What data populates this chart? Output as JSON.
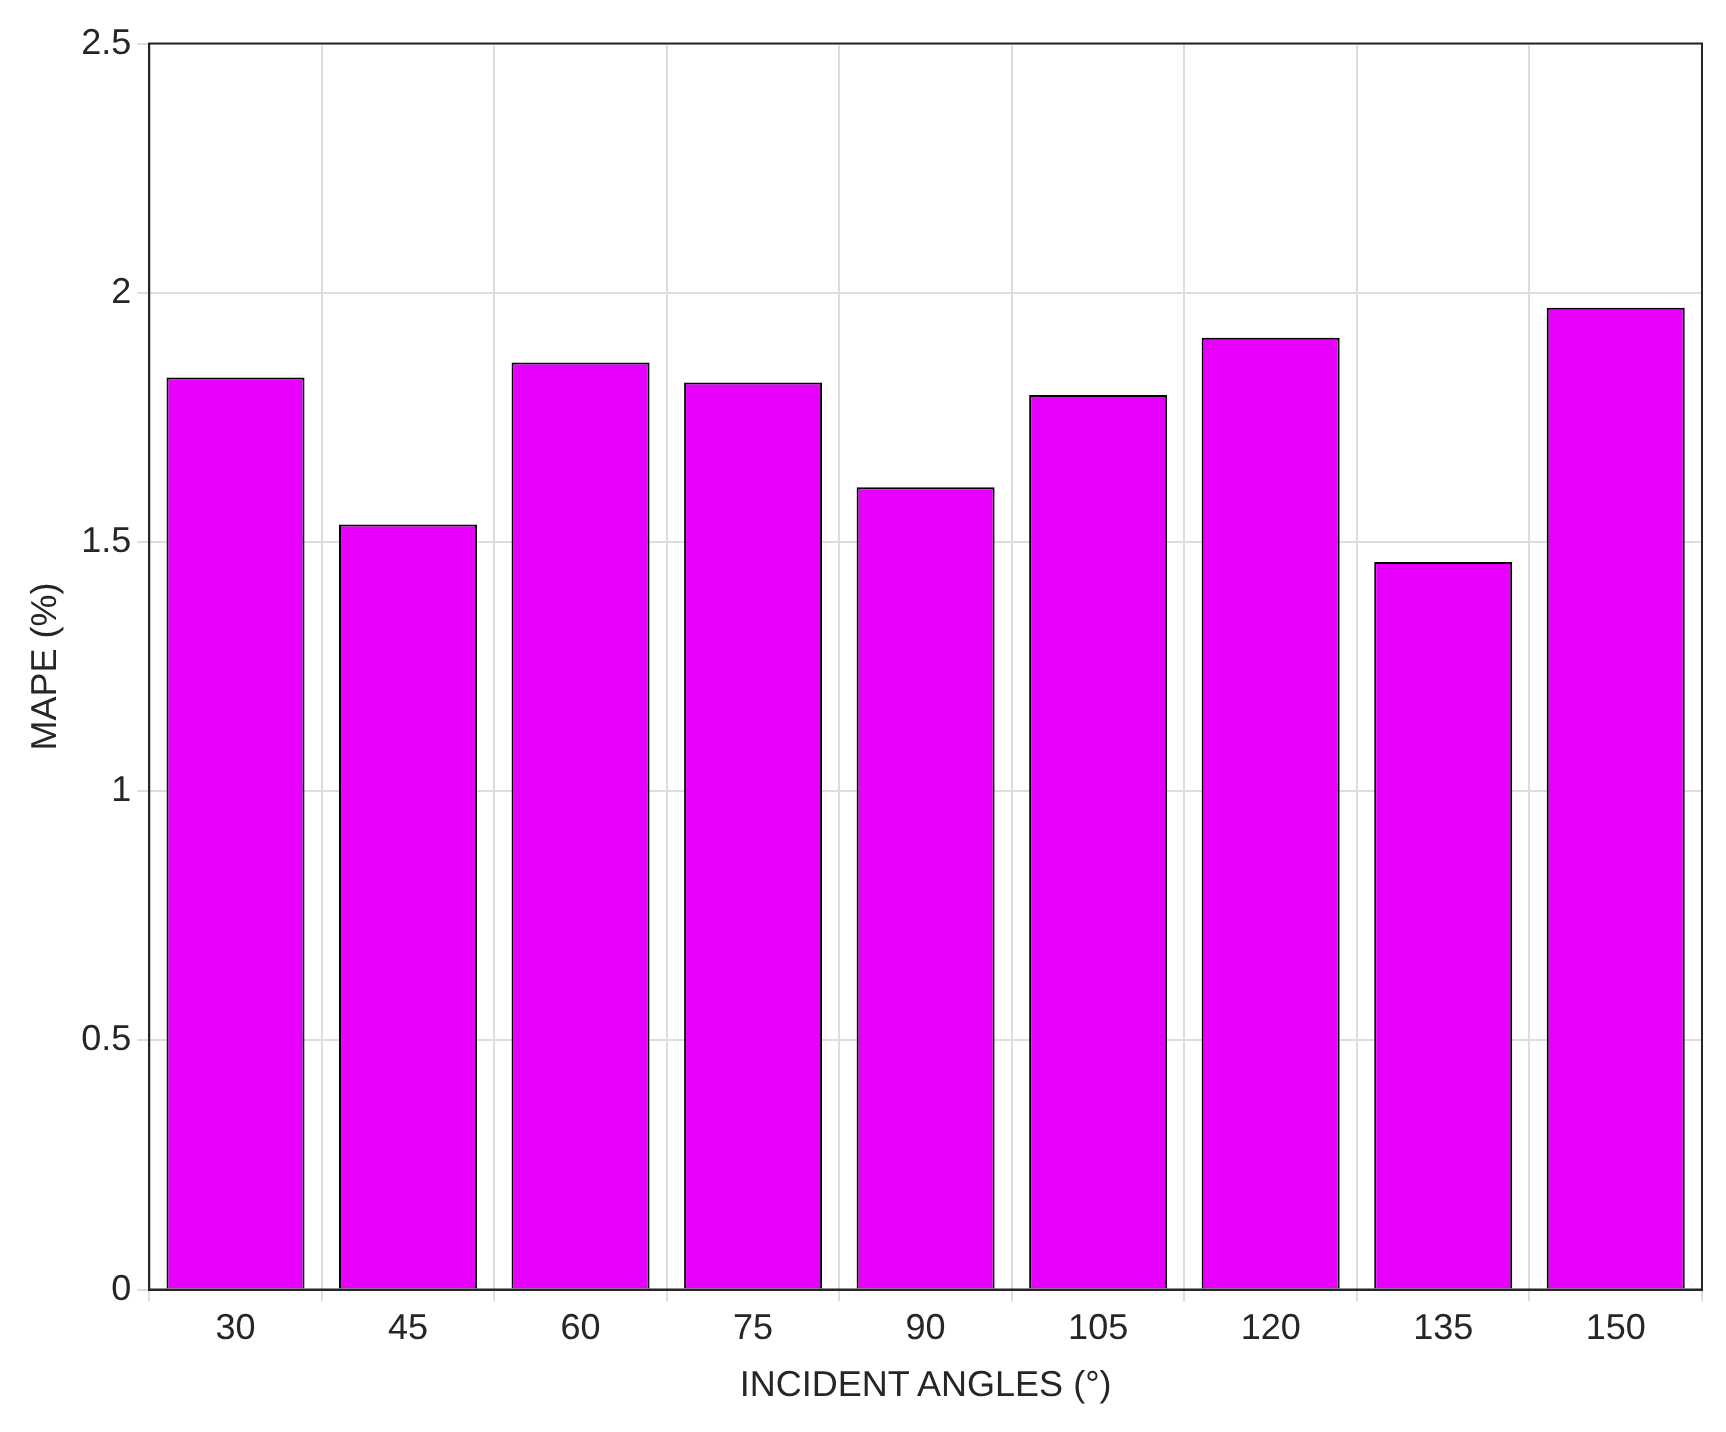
{
  "chart_data": {
    "type": "bar",
    "xlabel": "INCIDENT ANGLES (°)",
    "ylabel": "MAPE (%)",
    "categories": [
      "30",
      "45",
      "60",
      "75",
      "90",
      "105",
      "120",
      "135",
      "150"
    ],
    "values": [
      1.83,
      1.535,
      1.86,
      1.82,
      1.61,
      1.795,
      1.91,
      1.46,
      1.97
    ],
    "color": "#e800ff",
    "ylim": [
      0,
      2.5
    ],
    "yticks": [
      0,
      0.5,
      1,
      1.5,
      2,
      2.5
    ],
    "grid": true
  }
}
